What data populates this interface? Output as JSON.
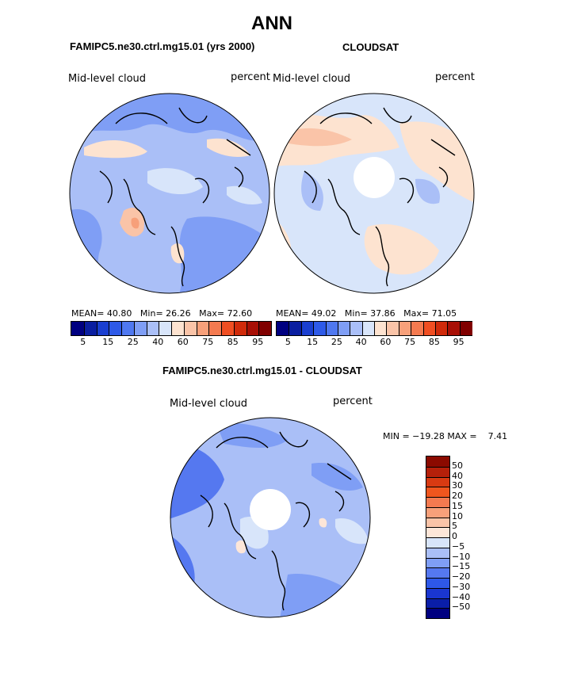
{
  "title": "ANN",
  "panels": [
    {
      "name": "FAMIPC5.ne30.ctrl.mg15.01 (yrs 2000)",
      "variable_label": "Mid-level cloud",
      "units_label": "percent",
      "stats": {
        "mean_label": "MEAN=",
        "mean": "40.80",
        "min_label": "Min=",
        "min": "26.26",
        "max_label": "Max=",
        "max": "72.60"
      },
      "polar_hole": false
    },
    {
      "name": "CLOUDSAT",
      "variable_label": "Mid-level cloud",
      "units_label": "percent",
      "stats": {
        "mean_label": "MEAN=",
        "mean": "49.02",
        "min_label": "Min=",
        "min": "37.86",
        "max_label": "Max=",
        "max": "71.05"
      },
      "polar_hole": true
    }
  ],
  "colorbar_top": {
    "tick_labels": [
      "5",
      "15",
      "25",
      "40",
      "60",
      "75",
      "85",
      "95"
    ],
    "colors": [
      "#000080",
      "#0a1ea0",
      "#1a3fd0",
      "#2e5ae8",
      "#4f78f0",
      "#7f9ef5",
      "#aabff7",
      "#d8e5fa",
      "#fde3d0",
      "#fac4a8",
      "#f7a07a",
      "#f47a50",
      "#f04e22",
      "#d02a0a",
      "#a80f05",
      "#800000"
    ]
  },
  "diff_panel": {
    "name": "FAMIPC5.ne30.ctrl.mg15.01 - CLOUDSAT",
    "variable_label": "Mid-level cloud",
    "units_label": "percent",
    "min_max_text": "MIN = −19.28 MAX =    7.41",
    "polar_hole": true
  },
  "colorbar_diff": {
    "tick_labels": [
      "50",
      "40",
      "30",
      "20",
      "15",
      "10",
      "5",
      "0",
      "−5",
      "−10",
      "−15",
      "−20",
      "−30",
      "−40",
      "−50"
    ],
    "colors": [
      "#8b0a00",
      "#b5200a",
      "#d83a12",
      "#f0561e",
      "#f47a50",
      "#f7a07a",
      "#fac4a8",
      "#fde6d8",
      "#d8e5fa",
      "#aabff7",
      "#7f9ef5",
      "#5578f0",
      "#2e58e8",
      "#1a36d0",
      "#0a1ea8",
      "#000080"
    ]
  }
}
